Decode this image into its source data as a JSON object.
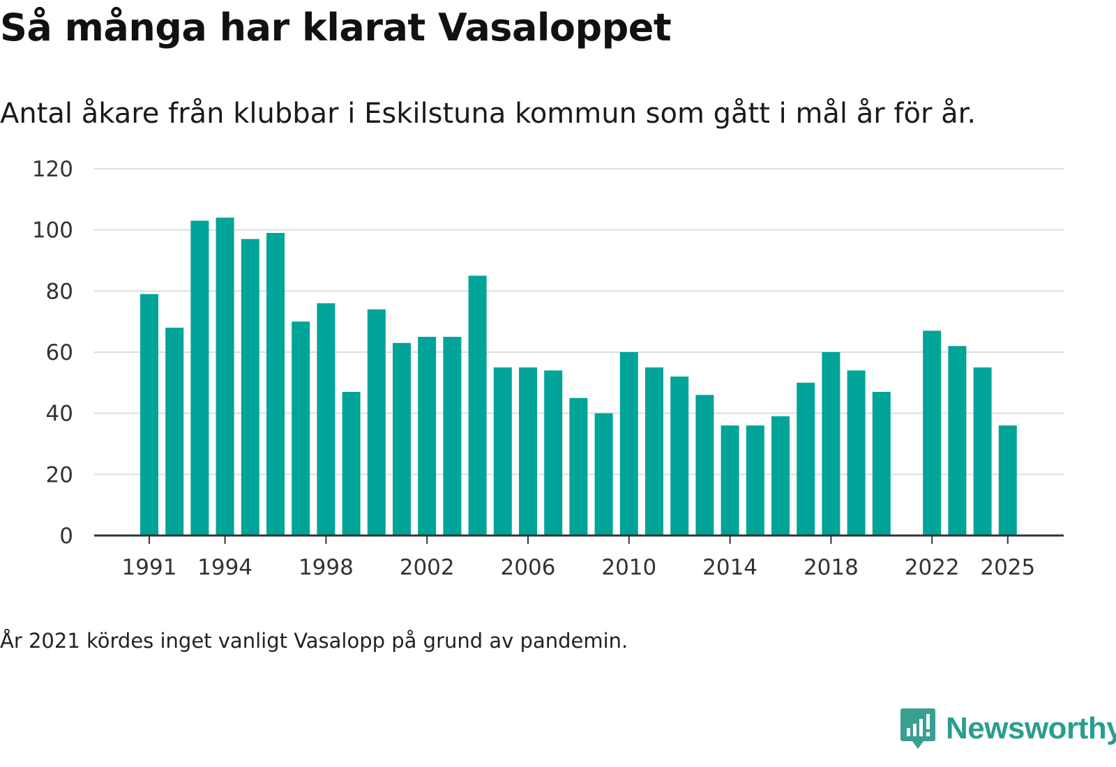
{
  "title": "Så många har klarat Vasaloppet",
  "subtitle": "Antal åkare från klubbar i Eskilstuna kommun som gått i mål år för år.",
  "footnote": "År 2021 kördes inget vanligt Vasalopp på grund av pandemin.",
  "brand": {
    "name": "Newsworthy",
    "icon": "newsworthy-logo-icon",
    "color": "#3a9f93"
  },
  "colors": {
    "bar": "#00a499",
    "grid": "#dddddd",
    "axis": "#333333"
  },
  "chart_data": {
    "type": "bar",
    "title": "Så många har klarat Vasaloppet",
    "xlabel": "",
    "ylabel": "",
    "ylim": [
      0,
      120
    ],
    "yticks": [
      0,
      20,
      40,
      60,
      80,
      100,
      120
    ],
    "xticks": [
      1991,
      1994,
      1998,
      2002,
      2006,
      2010,
      2014,
      2018,
      2022,
      2025
    ],
    "grid": true,
    "categories": [
      1991,
      1992,
      1993,
      1994,
      1995,
      1996,
      1997,
      1998,
      1999,
      2000,
      2001,
      2002,
      2003,
      2004,
      2005,
      2006,
      2007,
      2008,
      2009,
      2010,
      2011,
      2012,
      2013,
      2014,
      2015,
      2016,
      2017,
      2018,
      2019,
      2020,
      2021,
      2022,
      2023,
      2024,
      2025
    ],
    "values": [
      79,
      68,
      103,
      104,
      97,
      99,
      70,
      76,
      47,
      74,
      63,
      65,
      65,
      85,
      55,
      55,
      54,
      45,
      40,
      60,
      55,
      52,
      46,
      36,
      36,
      39,
      50,
      60,
      54,
      47,
      null,
      67,
      62,
      55,
      36
    ]
  }
}
